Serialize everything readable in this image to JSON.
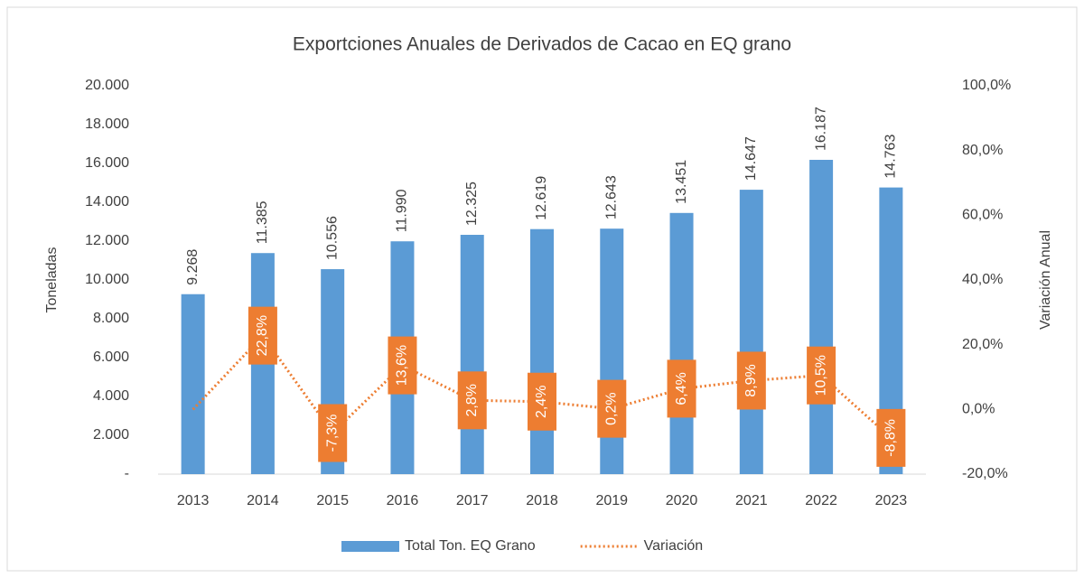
{
  "chart_data": {
    "type": "bar",
    "title": "Exportciones Anuales de Derivados de Cacao en EQ grano",
    "y_label": "Toneladas",
    "y2_label": "Variación Anual",
    "categories": [
      "2013",
      "2014",
      "2015",
      "2016",
      "2017",
      "2018",
      "2019",
      "2020",
      "2021",
      "2022",
      "2023"
    ],
    "series": [
      {
        "name": "Total Ton. EQ Grano",
        "color": "#5b9bd5",
        "type": "bar",
        "values": [
          9268,
          11385,
          10556,
          11990,
          12325,
          12619,
          12643,
          13451,
          14647,
          16187,
          14763
        ],
        "value_labels": [
          "9.268",
          "11.385",
          "10.556",
          "11.990",
          "12.325",
          "12.619",
          "12.643",
          "13.451",
          "14.647",
          "16.187",
          "14.763"
        ]
      },
      {
        "name": "Variación",
        "color": "#ed7d31",
        "type": "line",
        "axis": "y2",
        "values": [
          0,
          22.8,
          -7.3,
          13.6,
          2.8,
          2.4,
          0.2,
          6.4,
          8.9,
          10.5,
          -8.8
        ],
        "value_labels": [
          null,
          "22,8%",
          "-7,3%",
          "13,6%",
          "2,8%",
          "2,4%",
          "0,2%",
          "6,4%",
          "8,9%",
          "10,5%",
          "-8,8%"
        ]
      }
    ],
    "ylim": [
      0,
      20000
    ],
    "yticks": [
      {
        "value": 0,
        "label": "-"
      },
      {
        "value": 2000,
        "label": "2.000"
      },
      {
        "value": 4000,
        "label": "4.000"
      },
      {
        "value": 6000,
        "label": "6.000"
      },
      {
        "value": 8000,
        "label": "8.000"
      },
      {
        "value": 10000,
        "label": "10.000"
      },
      {
        "value": 12000,
        "label": "12.000"
      },
      {
        "value": 14000,
        "label": "14.000"
      },
      {
        "value": 16000,
        "label": "16.000"
      },
      {
        "value": 18000,
        "label": "18.000"
      },
      {
        "value": 20000,
        "label": "20.000"
      }
    ],
    "y2lim": [
      -20,
      100
    ],
    "y2ticks": [
      {
        "value": -20,
        "label": "-20,0%"
      },
      {
        "value": 0,
        "label": "0,0%"
      },
      {
        "value": 20,
        "label": "20,0%"
      },
      {
        "value": 40,
        "label": "40,0%"
      },
      {
        "value": 60,
        "label": "60,0%"
      },
      {
        "value": 80,
        "label": "80,0%"
      },
      {
        "value": 100,
        "label": "100,0%"
      }
    ],
    "grid": false,
    "legend": "bottom"
  }
}
